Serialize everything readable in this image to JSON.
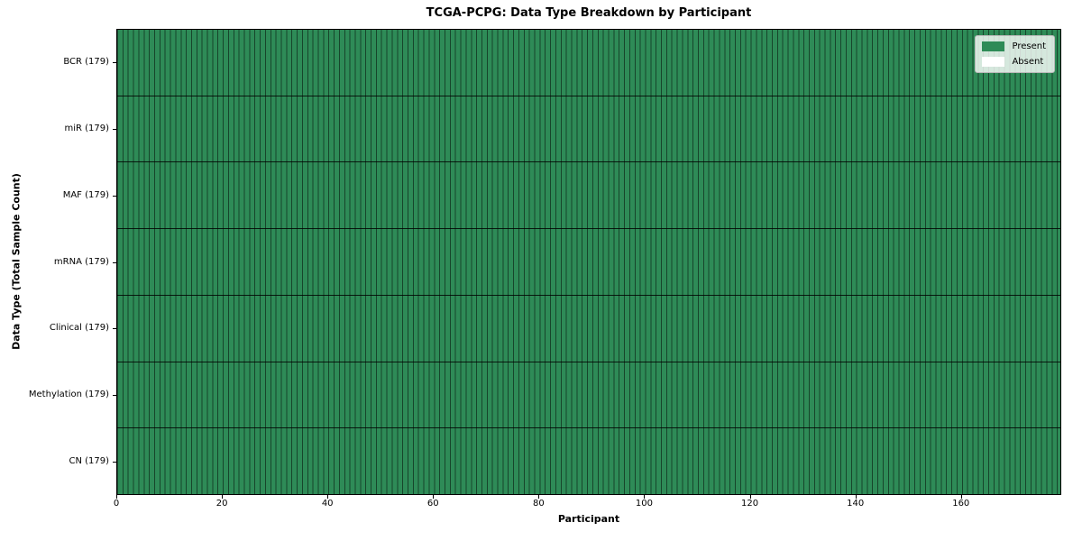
{
  "chart_data": {
    "type": "heatmap",
    "title": "TCGA-PCPG: Data Type Breakdown by Participant",
    "xlabel": "Participant",
    "ylabel": "Data Type (Total Sample Count)",
    "xlim": [
      0,
      179
    ],
    "x_ticks": [
      0,
      20,
      40,
      60,
      80,
      100,
      120,
      140,
      160
    ],
    "n_participants": 179,
    "grid": "black cell borders, no background grid",
    "legend_position": "upper right",
    "cell_colors": {
      "present": "#2e8b57",
      "absent": "#ffffff"
    },
    "rows": [
      {
        "label": "BCR (179)",
        "data_type": "BCR",
        "total_samples": 179,
        "present_participants": 179,
        "absent_participants": 0
      },
      {
        "label": "miR (179)",
        "data_type": "miR",
        "total_samples": 179,
        "present_participants": 179,
        "absent_participants": 0
      },
      {
        "label": "MAF (179)",
        "data_type": "MAF",
        "total_samples": 179,
        "present_participants": 179,
        "absent_participants": 0
      },
      {
        "label": "mRNA (179)",
        "data_type": "mRNA",
        "total_samples": 179,
        "present_participants": 179,
        "absent_participants": 0
      },
      {
        "label": "Clinical (179)",
        "data_type": "Clinical",
        "total_samples": 179,
        "present_participants": 179,
        "absent_participants": 0
      },
      {
        "label": "Methylation (179)",
        "data_type": "Methylation",
        "total_samples": 179,
        "present_participants": 179,
        "absent_participants": 0
      },
      {
        "label": "CN (179)",
        "data_type": "CN",
        "total_samples": 179,
        "present_participants": 179,
        "absent_participants": 0
      }
    ],
    "legend": {
      "items": [
        {
          "label": "Present",
          "color": "#2e8b57"
        },
        {
          "label": "Absent",
          "color": "#ffffff"
        }
      ]
    }
  }
}
